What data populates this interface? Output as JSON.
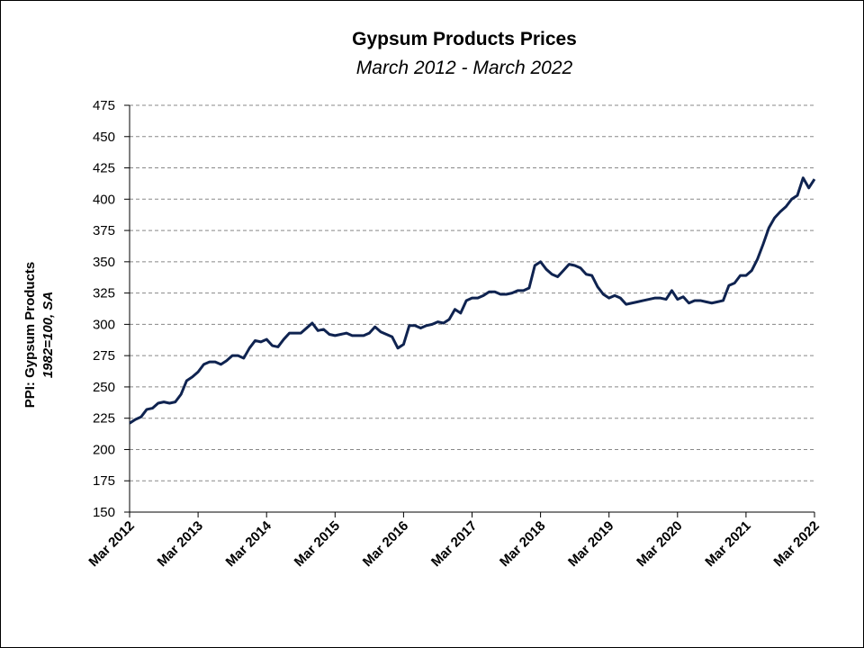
{
  "chart_data": {
    "type": "line",
    "title": "Gypsum Products Prices",
    "subtitle": "March 2012 - March 2022",
    "ylabel": "PPI: Gypsum Products",
    "ylabel2": "1982=100, SA",
    "categories": [
      "Mar 2012",
      null,
      null,
      null,
      null,
      null,
      null,
      null,
      null,
      null,
      null,
      null,
      "Mar 2013",
      null,
      null,
      null,
      null,
      null,
      null,
      null,
      null,
      null,
      null,
      null,
      "Mar 2014",
      null,
      null,
      null,
      null,
      null,
      null,
      null,
      null,
      null,
      null,
      null,
      "Mar 2015",
      null,
      null,
      null,
      null,
      null,
      null,
      null,
      null,
      null,
      null,
      null,
      "Mar 2016",
      null,
      null,
      null,
      null,
      null,
      null,
      null,
      null,
      null,
      null,
      null,
      "Mar 2017",
      null,
      null,
      null,
      null,
      null,
      null,
      null,
      null,
      null,
      null,
      null,
      "Mar 2018",
      null,
      null,
      null,
      null,
      null,
      null,
      null,
      null,
      null,
      null,
      null,
      "Mar 2019",
      null,
      null,
      null,
      null,
      null,
      null,
      null,
      null,
      null,
      null,
      null,
      "Mar 2020",
      null,
      null,
      null,
      null,
      null,
      null,
      null,
      null,
      null,
      null,
      null,
      "Mar 2021",
      null,
      null,
      null,
      null,
      null,
      null,
      null,
      null,
      null,
      null,
      null,
      "Mar 2022"
    ],
    "series": [
      {
        "color": "#0f2350",
        "values": [
          221,
          224,
          226,
          232,
          233,
          237,
          238,
          237,
          238,
          244,
          255,
          258,
          262,
          268,
          270,
          270,
          268,
          271,
          275,
          275,
          273,
          281,
          287,
          286,
          288,
          283,
          282,
          288,
          293,
          293,
          293,
          297,
          301,
          295,
          296,
          292,
          291,
          292,
          293,
          291,
          291,
          291,
          293,
          298,
          294,
          292,
          290,
          281,
          284,
          299,
          299,
          297,
          299,
          300,
          302,
          301,
          304,
          312,
          309,
          319,
          321,
          321,
          323,
          326,
          326,
          324,
          324,
          325,
          327,
          327,
          329,
          347,
          350,
          344,
          340,
          338,
          343,
          348,
          347,
          345,
          340,
          339,
          330,
          324,
          321,
          323,
          321,
          316,
          317,
          318,
          319,
          320,
          321,
          321,
          320,
          327,
          320,
          322,
          317,
          319,
          319,
          318,
          317,
          318,
          319,
          331,
          333,
          339,
          339,
          343,
          352,
          364,
          377,
          385,
          390,
          394,
          400,
          403,
          417,
          409,
          416
        ]
      }
    ],
    "ylim": [
      150,
      475
    ],
    "yticks": [
      150,
      175,
      200,
      225,
      250,
      275,
      300,
      325,
      350,
      375,
      400,
      425,
      450,
      475
    ],
    "grid": true
  }
}
